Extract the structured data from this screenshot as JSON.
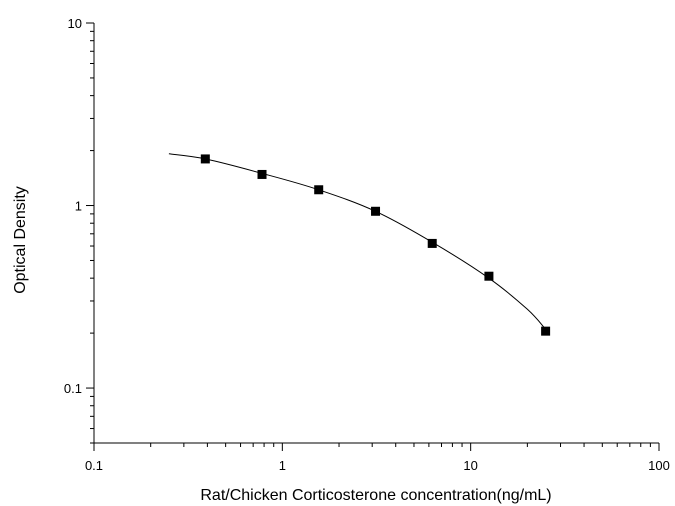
{
  "chart_data": {
    "type": "scatter",
    "xlabel": "Rat/Chicken Corticosterone concentration(ng/mL)",
    "ylabel": "Optical Density",
    "x_scale": "log",
    "y_scale": "log",
    "xlim": [
      0.1,
      100
    ],
    "ylim": [
      0.05,
      10
    ],
    "x_ticks": [
      0.1,
      1,
      10,
      100
    ],
    "x_tick_labels": [
      "0.1",
      "1",
      "10",
      "100"
    ],
    "y_ticks": [
      0.1,
      1,
      10
    ],
    "y_tick_labels": [
      "0.1",
      "1",
      "10"
    ],
    "grid": false,
    "series": [
      {
        "marker": "square",
        "color": "#000000",
        "x": [
          0.39,
          0.78,
          1.56,
          3.125,
          6.25,
          12.5,
          25
        ],
        "y": [
          1.8,
          1.48,
          1.22,
          0.93,
          0.62,
          0.41,
          0.205
        ]
      }
    ],
    "fit_curve": {
      "color": "#000000",
      "x": [
        0.25,
        0.39,
        0.78,
        1.56,
        3.125,
        6.25,
        12.5,
        20,
        25
      ],
      "y": [
        1.92,
        1.8,
        1.5,
        1.22,
        0.93,
        0.63,
        0.4,
        0.27,
        0.21
      ]
    }
  }
}
